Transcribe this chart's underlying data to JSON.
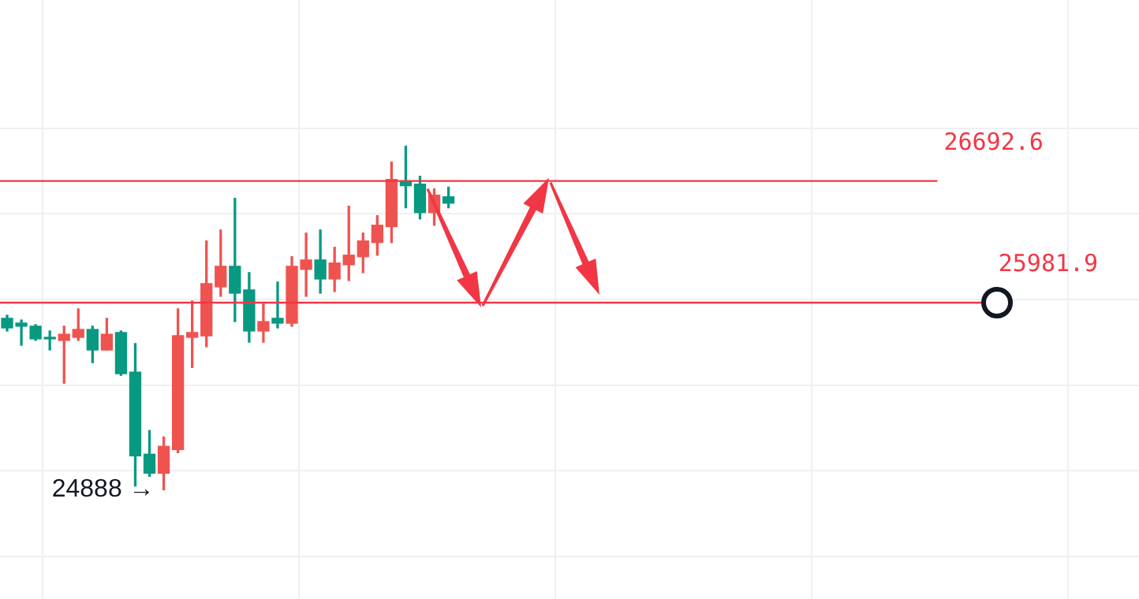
{
  "chart_data": {
    "type": "candlestick",
    "categories": [
      null,
      null,
      null,
      null,
      null,
      null,
      null,
      null,
      null,
      null,
      null,
      null,
      null,
      null,
      null,
      null,
      null,
      null,
      null,
      null,
      null,
      null,
      null,
      null,
      null,
      null,
      null,
      null,
      null,
      null,
      null,
      null,
      null,
      null,
      null,
      null,
      null,
      null,
      null,
      null,
      null,
      null,
      null,
      null,
      null,
      null,
      null,
      null,
      null,
      null,
      null,
      null,
      null,
      null,
      null,
      null,
      null,
      null,
      null,
      null,
      null,
      null,
      null,
      null,
      null,
      null,
      null,
      null,
      null,
      null,
      null,
      null,
      null,
      null,
      null,
      null,
      null,
      null,
      null,
      null
    ],
    "ohlc": [
      [
        25890,
        25908,
        25816,
        25834
      ],
      [
        25862,
        25880,
        25733,
        25844
      ],
      [
        25844,
        25853,
        25761,
        25770
      ],
      [
        25779,
        25816,
        25705,
        25770
      ],
      [
        25761,
        25844,
        25511,
        25797
      ],
      [
        25779,
        25945,
        25761,
        25825
      ],
      [
        25825,
        25844,
        25631,
        25705
      ],
      [
        25705,
        25890,
        25705,
        25797
      ],
      [
        25807,
        25816,
        25557,
        25567
      ],
      [
        25576,
        25742,
        24911,
        25087
      ],
      [
        25096,
        25234,
        24967,
        24985
      ],
      [
        24985,
        25197,
        24888,
        25142
      ],
      [
        25124,
        25945,
        25105,
        25788
      ],
      [
        25779,
        25991,
        25603,
        25807
      ],
      [
        25788,
        26342,
        25724,
        26093
      ],
      [
        26074,
        26406,
        26019,
        26194
      ],
      [
        26194,
        26591,
        25871,
        26037
      ],
      [
        26056,
        26157,
        25751,
        25816
      ],
      [
        25816,
        25973,
        25751,
        25871
      ],
      [
        25890,
        26102,
        25834,
        25862
      ],
      [
        25862,
        26250,
        25844,
        26194
      ],
      [
        26176,
        26388,
        26019,
        26231
      ],
      [
        26231,
        26406,
        26037,
        26120
      ],
      [
        26120,
        26305,
        26047,
        26213
      ],
      [
        26203,
        26545,
        26111,
        26259
      ],
      [
        26250,
        26388,
        26157,
        26342
      ],
      [
        26333,
        26490,
        26259,
        26434
      ],
      [
        26425,
        26803,
        26333,
        26702
      ],
      [
        26693,
        26896,
        26536,
        26665
      ],
      [
        26674,
        26720,
        26471,
        26508
      ],
      [
        26508,
        26646,
        26434,
        26610
      ],
      [
        26600,
        26656,
        26536,
        26563
      ],
      null,
      null,
      null,
      null,
      null,
      null,
      null,
      null,
      null,
      null,
      null,
      null,
      null,
      null,
      null,
      null,
      null,
      null,
      null,
      null,
      null,
      null,
      null,
      null,
      null,
      null,
      null,
      null,
      null,
      null,
      null,
      null,
      null,
      null,
      null,
      null,
      null,
      null,
      null,
      null,
      null,
      null,
      null,
      null,
      null,
      null,
      null,
      null
    ],
    "colors": [
      "#089981",
      "#089981",
      "#089981",
      "#089981",
      "#ef5350",
      "#ef5350",
      "#089981",
      "#ef5350",
      "#089981",
      "#089981",
      "#089981",
      "#ef5350",
      "#ef5350",
      "#ef5350",
      "#ef5350",
      "#ef5350",
      "#089981",
      "#089981",
      "#ef5350",
      "#089981",
      "#ef5350",
      "#ef5350",
      "#089981",
      "#ef5350",
      "#ef5350",
      "#ef5350",
      "#ef5350",
      "#ef5350",
      "#089981",
      "#089981",
      "#ef5350",
      "#089981",
      null,
      null,
      null,
      null,
      null,
      null,
      null,
      null,
      null,
      null,
      null,
      null,
      null,
      null,
      null,
      null,
      null,
      null,
      null,
      null,
      null,
      null,
      null,
      null,
      null,
      null,
      null,
      null,
      null,
      null,
      null,
      null,
      null,
      null,
      null,
      null,
      null,
      null,
      null,
      null,
      null,
      null,
      null,
      null,
      null,
      null,
      null,
      null
    ],
    "ylim": [
      24250,
      27750
    ],
    "yticks": [
      {
        "value": 24500,
        "label": null
      },
      {
        "value": 25000,
        "label": null
      },
      {
        "value": 25500,
        "label": null
      },
      {
        "value": 26000,
        "label": null
      },
      {
        "value": 26500,
        "label": null
      },
      {
        "value": 27000,
        "label": null
      }
    ],
    "grid": true,
    "ref_lines": [
      {
        "axis": "y",
        "value": 26692.6,
        "label": "26692.6",
        "color": "#f23645"
      },
      {
        "axis": "y",
        "value": 25981.9,
        "label": "25981.9",
        "color": "#f23645"
      }
    ],
    "annotations": [
      "24888 →"
    ]
  }
}
